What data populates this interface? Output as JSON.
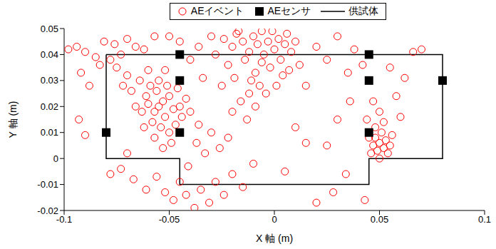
{
  "chart_data": {
    "type": "scatter",
    "x_label": "X 軸 (m)",
    "y_label": "Y 軸 (m)",
    "xlim": [
      -0.1,
      0.1
    ],
    "xticks": [
      -0.1,
      -0.05,
      0,
      0.05,
      0.1
    ],
    "ylim": [
      -0.02,
      0.05
    ],
    "yticks": [
      -0.02,
      -0.01,
      0,
      0.01,
      0.02,
      0.03,
      0.04,
      0.05
    ],
    "grid": false,
    "legend": "top",
    "series": [
      {
        "name": "供試体",
        "type": "line",
        "color": "#000000",
        "marker": "none",
        "line_style": "solid",
        "x": [
          -0.08,
          0.08,
          0.08,
          0.045,
          0.045,
          -0.045,
          -0.045,
          -0.08,
          -0.08
        ],
        "values": [
          0.04,
          0.04,
          0,
          0,
          -0.01,
          -0.01,
          0,
          0,
          0.04
        ]
      },
      {
        "name": "AEイベント",
        "type": "scatter",
        "color": "#ff0000",
        "marker": "circle-open",
        "x": [
          -0.055,
          -0.053,
          -0.057,
          -0.05,
          -0.06,
          -0.052,
          -0.056,
          -0.048,
          -0.058,
          -0.054,
          -0.05,
          -0.047,
          -0.061,
          -0.063,
          -0.051,
          -0.055,
          -0.059,
          -0.045,
          -0.044,
          -0.049,
          -0.053,
          -0.057,
          -0.062,
          -0.066,
          -0.068,
          -0.064,
          -0.07,
          -0.072,
          -0.075,
          -0.078,
          -0.073,
          -0.06,
          -0.052,
          -0.046,
          -0.042,
          -0.04,
          -0.005,
          0,
          -0.003,
          -0.008,
          0.002,
          -0.01,
          0.005,
          -0.012,
          -0.006,
          -0.002,
          -0.009,
          0.003,
          -0.015,
          -0.018,
          -0.02,
          -0.014,
          -0.011,
          -0.007,
          -0.004,
          -0.012,
          -0.016,
          -0.009,
          0.006,
          0.008,
          0.01,
          0.004,
          -0.001,
          -0.024,
          -0.028,
          -0.022,
          -0.019,
          -0.025,
          -0.02,
          -0.013,
          0.012,
          0.001,
          0.007,
          -0.03,
          -0.017,
          -0.006,
          0.05,
          0.048,
          0.052,
          0.049,
          0.053,
          0.047,
          0.051,
          0.055,
          0.046,
          0.05,
          0.054,
          0.048,
          0.052,
          0.056,
          0.045,
          0.05,
          0.047,
          0.044,
          -0.098,
          -0.094,
          -0.09,
          -0.085,
          -0.092,
          -0.088,
          -0.093,
          -0.09,
          -0.083,
          -0.081,
          -0.076,
          -0.07,
          -0.066,
          -0.062,
          -0.057,
          -0.078,
          -0.073,
          -0.07,
          -0.067,
          -0.061,
          -0.056,
          -0.052,
          -0.048,
          -0.045,
          -0.042,
          -0.038,
          -0.035,
          -0.031,
          -0.028,
          -0.024,
          -0.02,
          -0.015,
          -0.041,
          -0.037,
          -0.033,
          -0.036,
          -0.03,
          -0.026,
          -0.022,
          -0.04,
          -0.036,
          -0.034,
          0.015,
          0.02,
          0.025,
          0.03,
          0.035,
          0.038,
          0.042,
          0.036,
          0.03,
          0.025,
          0.028,
          0.02,
          0.034,
          0.043,
          0.058,
          0.062,
          0.066,
          0.07,
          0.055,
          0.06,
          0.015,
          0.01,
          0.005,
          -0.01,
          -0.05,
          -0.045
        ],
        "values": [
          0.02,
          0.022,
          0.018,
          0.024,
          0.021,
          0.016,
          0.026,
          0.019,
          0.014,
          0.012,
          0.01,
          0.013,
          0.024,
          0.018,
          0.028,
          0.03,
          0.028,
          0.02,
          0.016,
          0.006,
          0.004,
          0.008,
          0.012,
          0.02,
          0.026,
          0.03,
          0.032,
          0.028,
          0.035,
          0.038,
          0.04,
          0.034,
          0.034,
          0.027,
          0.023,
          0.018,
          0.04,
          0.042,
          0.045,
          0.044,
          0.046,
          0.047,
          0.044,
          0.041,
          0.037,
          0.035,
          0.033,
          0.038,
          0.045,
          0.048,
          0.043,
          0.038,
          0.03,
          0.028,
          0.025,
          0.025,
          0.022,
          0.02,
          0.048,
          0.041,
          0.045,
          0.032,
          0.049,
          0.046,
          0.04,
          0.036,
          0.031,
          0.028,
          0.018,
          0.015,
          0.036,
          0.028,
          0.034,
          0.047,
          0.049,
          0.049,
          0.006,
          0.008,
          0.004,
          0.003,
          0.007,
          0.005,
          0.01,
          0.005,
          0.002,
          0,
          0.002,
          0.012,
          0.014,
          0.009,
          0.008,
          0.018,
          0.022,
          0.015,
          0.042,
          0.043,
          0.041,
          0.039,
          0.033,
          0.028,
          0.015,
          0.009,
          0.036,
          0.045,
          0.044,
          0.046,
          0.043,
          0.042,
          0.047,
          -0.006,
          -0.004,
          0.002,
          -0.008,
          -0.012,
          -0.007,
          -0.013,
          -0.016,
          -0.009,
          -0.014,
          -0.019,
          -0.012,
          -0.017,
          -0.009,
          -0.014,
          -0.006,
          -0.011,
          -0.003,
          0.006,
          0.002,
          0.013,
          0.01,
          0.004,
          0.008,
          0.038,
          0.043,
          0.031,
          0.028,
          0.043,
          0.038,
          0.047,
          0.033,
          0.042,
          0.036,
          0.022,
          0.015,
          0.005,
          -0.013,
          -0.017,
          -0.006,
          -0.016,
          0.024,
          0.031,
          0.041,
          0.042,
          0.035,
          0.016,
          0.006,
          0.012,
          -0.005,
          -0.002,
          0.047,
          0.045
        ]
      },
      {
        "name": "AEセンサ",
        "type": "scatter",
        "color": "#000000",
        "marker": "square",
        "x": [
          -0.08,
          -0.045,
          -0.045,
          -0.045,
          0.045,
          0.045,
          0.045,
          0.08
        ],
        "values": [
          0.01,
          0.01,
          0.03,
          0.04,
          0.01,
          0.03,
          0.04,
          0.03
        ]
      }
    ]
  }
}
